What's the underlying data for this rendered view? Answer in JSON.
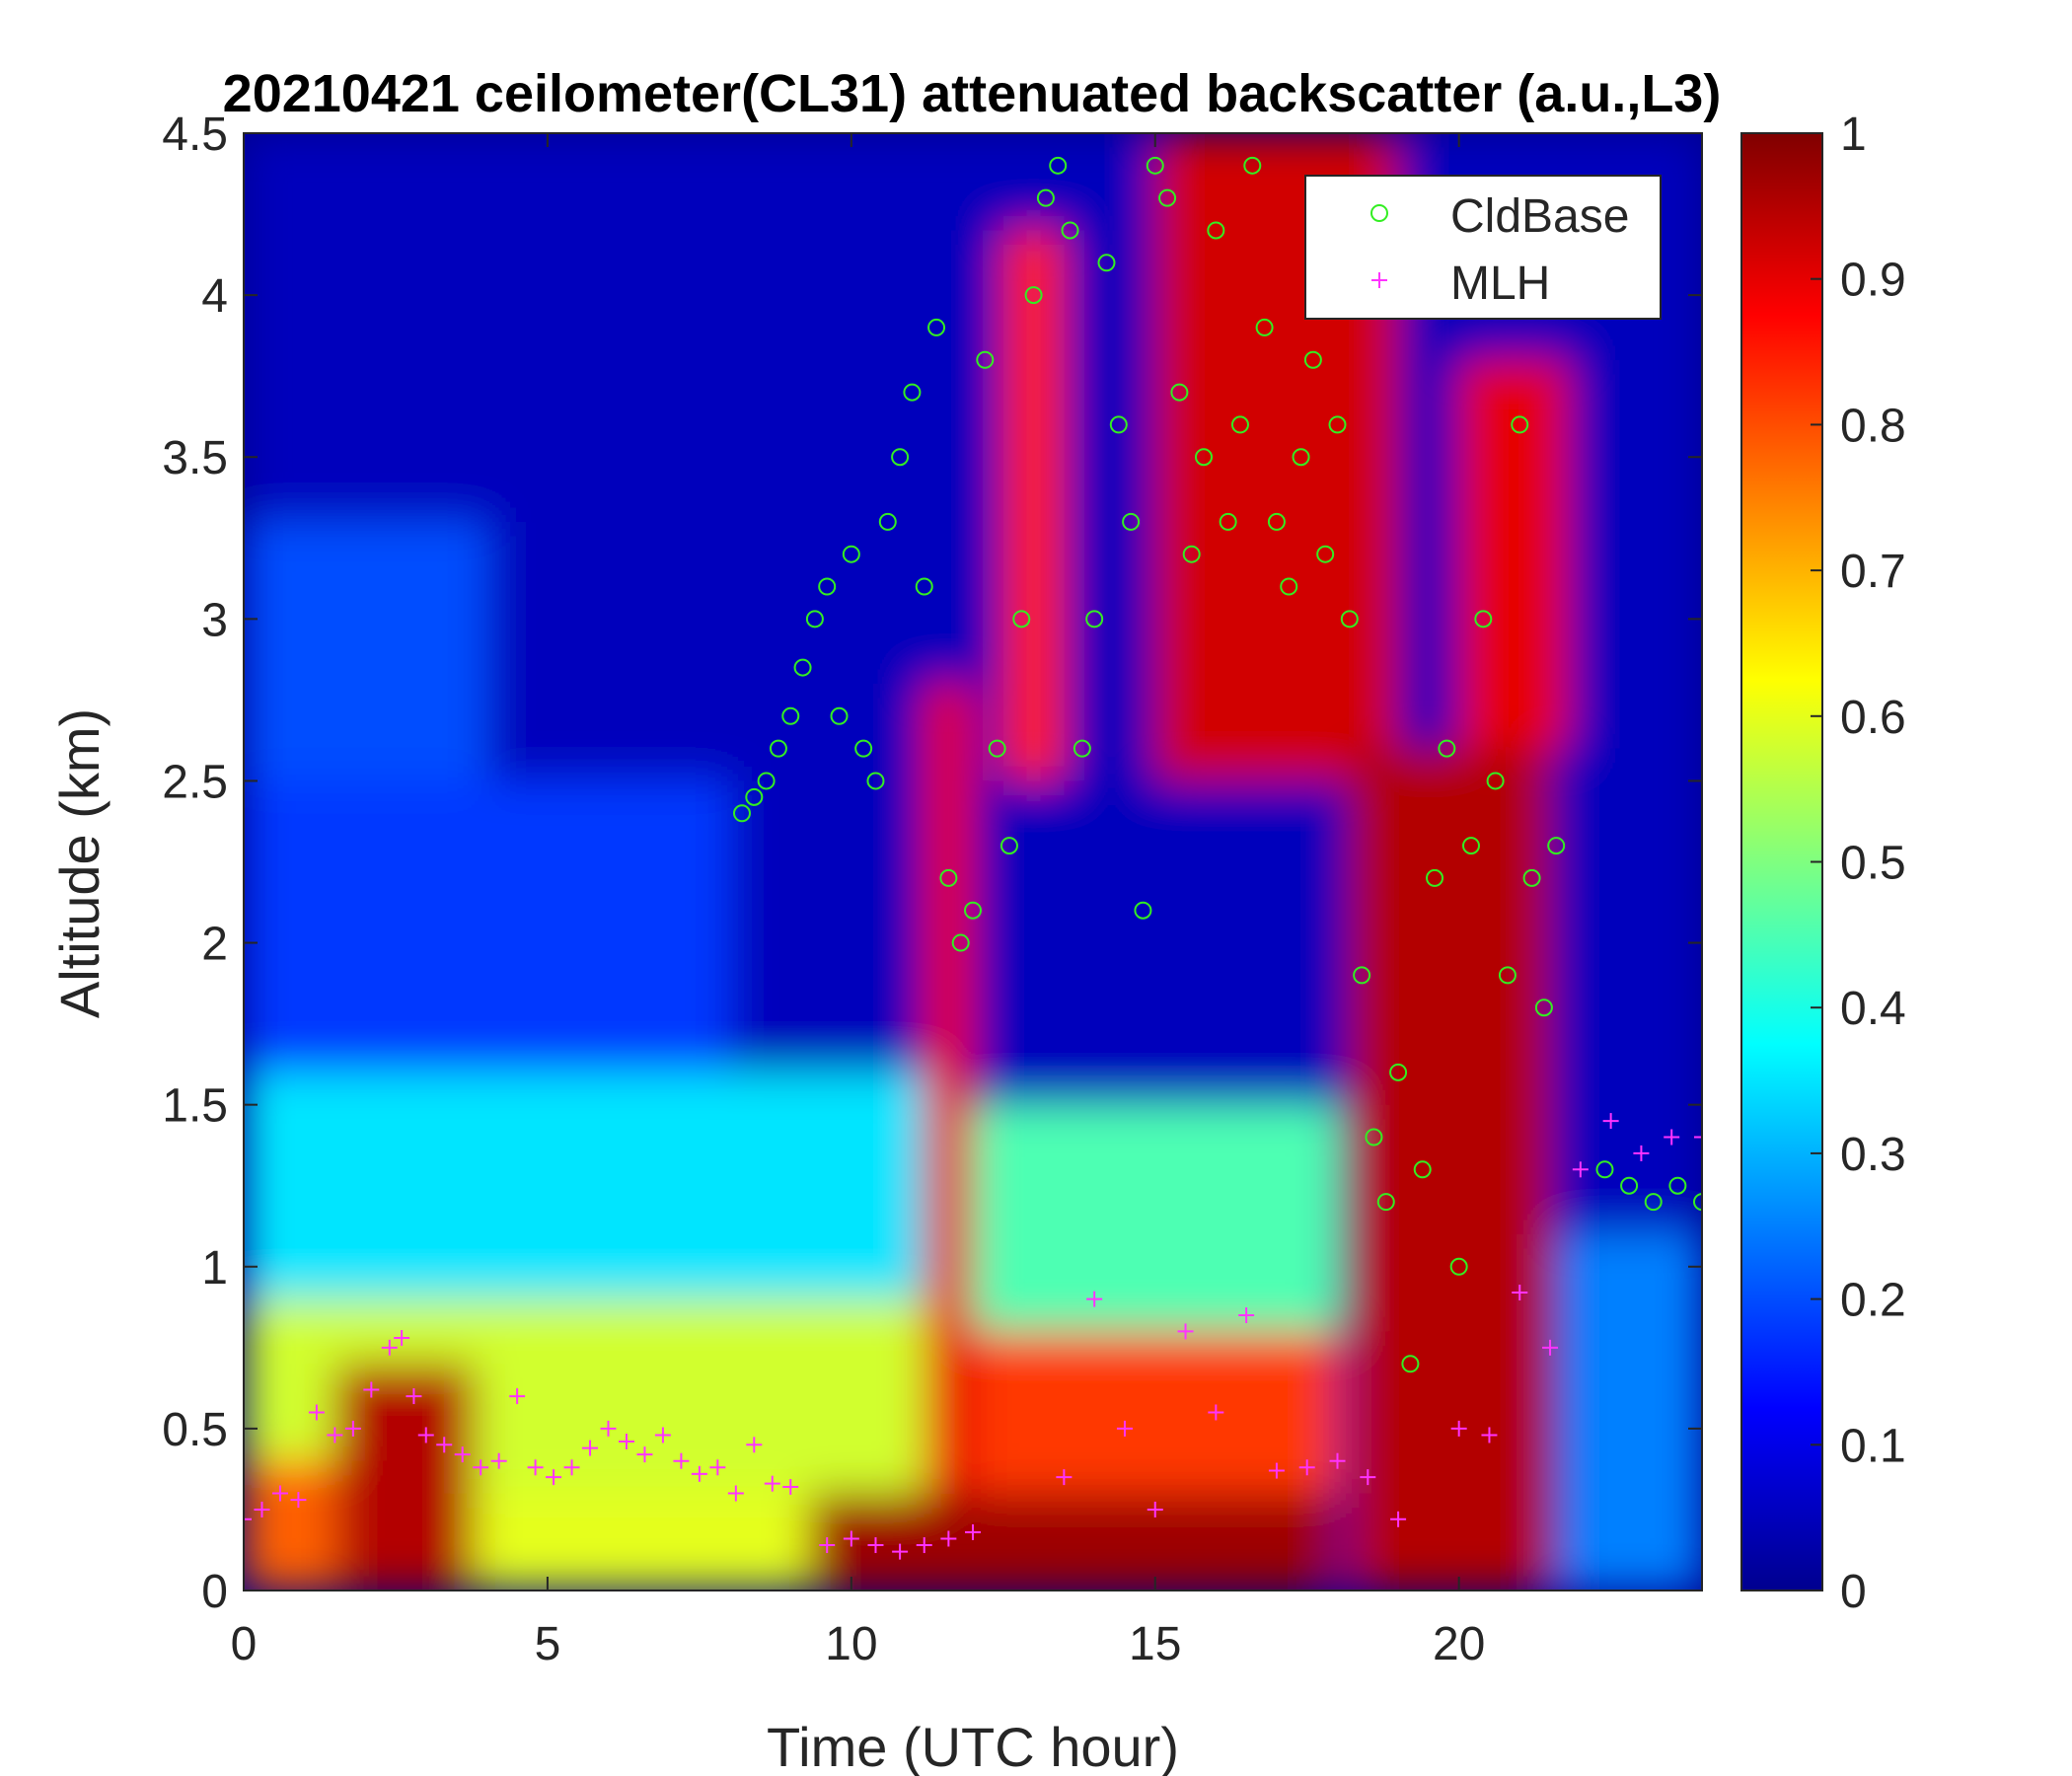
{
  "chart_data": {
    "type": "heatmap",
    "title": "20210421 ceilometer(CL31) attenuated backscatter (a.u.,L3)",
    "xlabel": "Time (UTC hour)",
    "ylabel": "Altitude (km)",
    "xlim": [
      0,
      24
    ],
    "ylim": [
      0,
      4.5
    ],
    "xticks": [
      "0",
      "5",
      "10",
      "15",
      "20"
    ],
    "xtick_values": [
      0,
      5,
      10,
      15,
      20
    ],
    "yticks": [
      "0",
      "0.5",
      "1",
      "1.5",
      "2",
      "2.5",
      "3",
      "3.5",
      "4",
      "4.5"
    ],
    "ytick_values": [
      0,
      0.5,
      1,
      1.5,
      2,
      2.5,
      3,
      3.5,
      4,
      4.5
    ],
    "colorbar": {
      "colormap": "jet",
      "clim": [
        0,
        1
      ],
      "ticks": [
        "0",
        "0.1",
        "0.2",
        "0.3",
        "0.4",
        "0.5",
        "0.6",
        "0.7",
        "0.8",
        "0.9",
        "1"
      ],
      "tick_values": [
        0,
        0.1,
        0.2,
        0.3,
        0.4,
        0.5,
        0.6,
        0.7,
        0.8,
        0.9,
        1
      ]
    },
    "legend": {
      "location": "top-right",
      "entries": [
        {
          "label": "CldBase",
          "marker": "circle",
          "color": "#33ee22"
        },
        {
          "label": "MLH",
          "marker": "plus",
          "color": "#ff33ff"
        }
      ]
    },
    "backscatter_regions": [
      {
        "t0": 0,
        "t1": 24,
        "z0": 0,
        "z1": 4.5,
        "value": 0.05,
        "note": "background"
      },
      {
        "t0": 0,
        "t1": 4,
        "z0": 2.5,
        "z1": 3.3,
        "value": 0.2
      },
      {
        "t0": 0,
        "t1": 8,
        "z0": 1.6,
        "z1": 2.5,
        "value": 0.18
      },
      {
        "t0": 0,
        "t1": 12,
        "z0": 0.7,
        "z1": 1.6,
        "value": 0.35
      },
      {
        "t0": 0,
        "t1": 12,
        "z0": 0.3,
        "z1": 0.9,
        "value": 0.58
      },
      {
        "t0": 0,
        "t1": 1.6,
        "z0": 0,
        "z1": 0.4,
        "value": 0.78
      },
      {
        "t0": 1.5,
        "t1": 3.8,
        "z0": 0,
        "z1": 0.7,
        "value": 0.95
      },
      {
        "t0": 3.8,
        "t1": 9.3,
        "z0": 0,
        "z1": 0.3,
        "value": 0.6
      },
      {
        "t0": 9.3,
        "t1": 18,
        "z0": 0,
        "z1": 0.3,
        "value": 0.97
      },
      {
        "t0": 12,
        "t1": 18,
        "z0": 0.3,
        "z1": 0.8,
        "value": 0.82
      },
      {
        "t0": 12,
        "t1": 18,
        "z0": 0.8,
        "z1": 1.5,
        "value": 0.45
      },
      {
        "t0": 15,
        "t1": 19,
        "z0": 2.5,
        "z1": 4.5,
        "value": 0.92
      },
      {
        "t0": 18.2,
        "t1": 21.5,
        "z0": 0,
        "z1": 2.6,
        "value": 0.95
      },
      {
        "t0": 20,
        "t1": 21.8,
        "z0": 2.6,
        "z1": 3.8,
        "value": 0.9
      },
      {
        "t0": 21.7,
        "t1": 24,
        "z0": 0,
        "z1": 1.1,
        "value": 0.25
      },
      {
        "t0": 12.5,
        "t1": 13.5,
        "z0": 2.5,
        "z1": 4.2,
        "value": 0.85
      },
      {
        "t0": 11.2,
        "t1": 12.0,
        "z0": 0.3,
        "z1": 2.8,
        "value": 0.9
      }
    ],
    "series": [
      {
        "name": "CldBase",
        "marker": "circle",
        "x": [
          8.2,
          8.4,
          8.6,
          8.8,
          9.0,
          9.2,
          9.4,
          9.6,
          9.8,
          10.0,
          10.2,
          10.4,
          10.6,
          10.8,
          11.0,
          11.2,
          11.4,
          11.6,
          11.8,
          12.0,
          12.2,
          12.4,
          12.6,
          12.8,
          13.0,
          13.2,
          13.4,
          13.6,
          13.8,
          14.0,
          14.2,
          14.4,
          14.6,
          14.8,
          15.0,
          15.2,
          15.4,
          15.6,
          15.8,
          16.0,
          16.2,
          16.4,
          16.6,
          16.8,
          17.0,
          17.2,
          17.4,
          17.6,
          17.8,
          18.0,
          18.2,
          18.4,
          18.6,
          18.8,
          19.0,
          19.2,
          19.4,
          19.6,
          19.8,
          20.0,
          20.2,
          20.4,
          20.6,
          20.8,
          21.0,
          21.2,
          21.4,
          21.6,
          22.4,
          22.8,
          23.2,
          23.6,
          24.0
        ],
        "y": [
          2.4,
          2.45,
          2.5,
          2.6,
          2.7,
          2.85,
          3.0,
          3.1,
          2.7,
          3.2,
          2.6,
          2.5,
          3.3,
          3.5,
          3.7,
          3.1,
          3.9,
          2.2,
          2.0,
          2.1,
          3.8,
          2.6,
          2.3,
          3.0,
          4.0,
          4.3,
          4.4,
          4.2,
          2.6,
          3.0,
          4.1,
          3.6,
          3.3,
          2.1,
          4.4,
          4.3,
          3.7,
          3.2,
          3.5,
          4.2,
          3.3,
          3.6,
          4.4,
          3.9,
          3.3,
          3.1,
          3.5,
          3.8,
          3.2,
          3.6,
          3.0,
          1.9,
          1.4,
          1.2,
          1.6,
          0.7,
          1.3,
          2.2,
          2.6,
          1.0,
          2.3,
          3.0,
          2.5,
          1.9,
          3.6,
          2.2,
          1.8,
          2.3,
          1.3,
          1.25,
          1.2,
          1.25,
          1.2
        ]
      },
      {
        "name": "MLH",
        "marker": "plus",
        "x": [
          0,
          0.3,
          0.6,
          0.9,
          1.2,
          1.5,
          1.8,
          2.1,
          2.4,
          2.6,
          2.8,
          3.0,
          3.3,
          3.6,
          3.9,
          4.2,
          4.5,
          4.8,
          5.1,
          5.4,
          5.7,
          6.0,
          6.3,
          6.6,
          6.9,
          7.2,
          7.5,
          7.8,
          8.1,
          8.4,
          8.7,
          9.0,
          9.6,
          10.0,
          10.4,
          10.8,
          11.2,
          11.6,
          12.0,
          13.5,
          14.0,
          14.5,
          15.0,
          15.5,
          16.0,
          16.5,
          17.0,
          17.5,
          18.0,
          18.5,
          19.0,
          20.0,
          20.5,
          21.0,
          21.5,
          22.0,
          22.5,
          23.0,
          23.5,
          24.0
        ],
        "y": [
          0.22,
          0.25,
          0.3,
          0.28,
          0.55,
          0.48,
          0.5,
          0.62,
          0.75,
          0.78,
          0.6,
          0.48,
          0.45,
          0.42,
          0.38,
          0.4,
          0.6,
          0.38,
          0.35,
          0.38,
          0.44,
          0.5,
          0.46,
          0.42,
          0.48,
          0.4,
          0.36,
          0.38,
          0.3,
          0.45,
          0.33,
          0.32,
          0.14,
          0.16,
          0.14,
          0.12,
          0.14,
          0.16,
          0.18,
          0.35,
          0.9,
          0.5,
          0.25,
          0.8,
          0.55,
          0.85,
          0.37,
          0.38,
          0.4,
          0.35,
          0.22,
          0.5,
          0.48,
          0.92,
          0.75,
          1.3,
          1.45,
          1.35,
          1.4,
          1.4
        ]
      }
    ]
  }
}
